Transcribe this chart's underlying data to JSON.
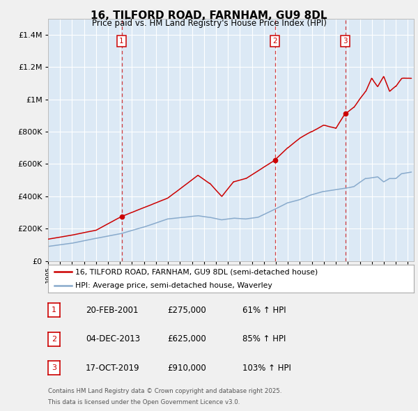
{
  "title": "16, TILFORD ROAD, FARNHAM, GU9 8DL",
  "subtitle": "Price paid vs. HM Land Registry's House Price Index (HPI)",
  "fig_bg": "#f0f0f0",
  "plot_bg": "#dce9f5",
  "grid_color": "#ffffff",
  "legend_label_red": "16, TILFORD ROAD, FARNHAM, GU9 8DL (semi-detached house)",
  "legend_label_blue": "HPI: Average price, semi-detached house, Waverley",
  "footnote_line1": "Contains HM Land Registry data © Crown copyright and database right 2025.",
  "footnote_line2": "This data is licensed under the Open Government Licence v3.0.",
  "sale_markers": [
    {
      "num": 1,
      "date": "20-FEB-2001",
      "price": 275000,
      "pct": "61%",
      "year": 2001.13
    },
    {
      "num": 2,
      "date": "04-DEC-2013",
      "price": 625000,
      "pct": "85%",
      "year": 2013.92
    },
    {
      "num": 3,
      "date": "17-OCT-2019",
      "price": 910000,
      "pct": "103%",
      "year": 2019.79
    }
  ],
  "red_color": "#cc0000",
  "blue_color": "#88aacc",
  "ylim_max": 1500000,
  "xlim_start": 1995.0,
  "xlim_end": 2025.5,
  "yticks": [
    0,
    200000,
    400000,
    600000,
    800000,
    1000000,
    1200000,
    1400000
  ],
  "xtick_start": 1995,
  "xtick_end": 2025
}
